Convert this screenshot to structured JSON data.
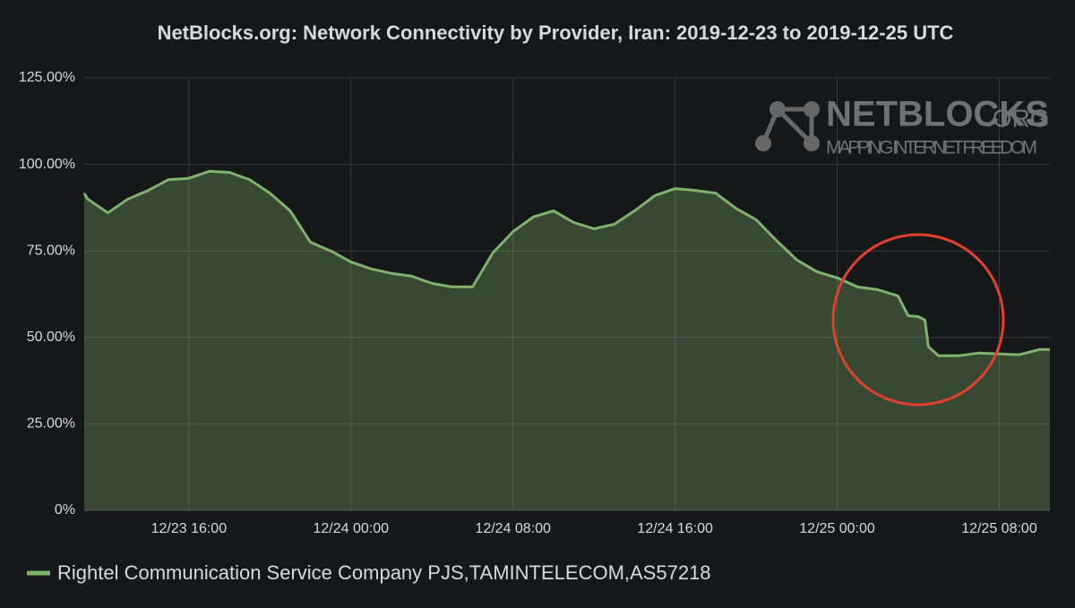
{
  "chart_data": {
    "type": "area",
    "title": "NetBlocks.org: Network Connectivity by Provider, Iran: 2019-12-23 to 2019-12-25 UTC",
    "logo": {
      "name": "NETBLOCKS",
      "suffix": ".ORG",
      "tagline": "MAPPING INTERNET FREEDOM"
    },
    "x": [
      "2019-12-23 10:50",
      "2019-12-23 11:00",
      "2019-12-23 12:00",
      "2019-12-23 13:00",
      "2019-12-23 14:00",
      "2019-12-23 15:00",
      "2019-12-23 16:00",
      "2019-12-23 17:00",
      "2019-12-23 18:00",
      "2019-12-23 19:00",
      "2019-12-23 20:00",
      "2019-12-23 21:00",
      "2019-12-23 22:00",
      "2019-12-23 23:00",
      "2019-12-24 00:00",
      "2019-12-24 01:00",
      "2019-12-24 02:00",
      "2019-12-24 03:00",
      "2019-12-24 04:00",
      "2019-12-24 05:00",
      "2019-12-24 06:00",
      "2019-12-24 07:00",
      "2019-12-24 08:00",
      "2019-12-24 09:00",
      "2019-12-24 10:00",
      "2019-12-24 11:00",
      "2019-12-24 12:00",
      "2019-12-24 13:00",
      "2019-12-24 14:00",
      "2019-12-24 15:00",
      "2019-12-24 16:00",
      "2019-12-24 17:00",
      "2019-12-24 18:00",
      "2019-12-24 19:00",
      "2019-12-24 20:00",
      "2019-12-24 21:00",
      "2019-12-24 22:00",
      "2019-12-24 23:00",
      "2019-12-25 00:00",
      "2019-12-25 01:00",
      "2019-12-25 02:00",
      "2019-12-25 03:00",
      "2019-12-25 03:30",
      "2019-12-25 04:00",
      "2019-12-25 04:20",
      "2019-12-25 04:30",
      "2019-12-25 05:00",
      "2019-12-25 06:00",
      "2019-12-25 07:00",
      "2019-12-25 08:00",
      "2019-12-25 09:00",
      "2019-12-25 10:00",
      "2019-12-25 10:30"
    ],
    "series": [
      {
        "name": "Rightel Communication Service Company PJS,TAMINTELECOM,AS57218",
        "color": "#7eb26d",
        "values": [
          91.7,
          90,
          86,
          90,
          92.5,
          95.6,
          96,
          98,
          97.7,
          95.6,
          91.7,
          86.6,
          77.5,
          75,
          71.8,
          69.8,
          68.5,
          67.7,
          65.6,
          64.6,
          64.6,
          74.4,
          80.6,
          84.8,
          86.6,
          83.2,
          81.4,
          82.7,
          86.6,
          91,
          93,
          92.5,
          91.7,
          87.3,
          84,
          78,
          72.4,
          69,
          67.2,
          64.6,
          63.8,
          62,
          56.3,
          56,
          55,
          47.3,
          44.7,
          44.7,
          45.5,
          45.2,
          45,
          46.5,
          46.5
        ]
      }
    ],
    "xlim": [
      "2019-12-23 10:50",
      "2019-12-25 10:30"
    ],
    "xticks": [
      {
        "value": "2019-12-23 16:00",
        "label": "12/23 16:00"
      },
      {
        "value": "2019-12-24 00:00",
        "label": "12/24 00:00"
      },
      {
        "value": "2019-12-24 08:00",
        "label": "12/24 08:00"
      },
      {
        "value": "2019-12-24 16:00",
        "label": "12/24 16:00"
      },
      {
        "value": "2019-12-25 00:00",
        "label": "12/25 00:00"
      },
      {
        "value": "2019-12-25 08:00",
        "label": "12/25 08:00"
      }
    ],
    "ylim": [
      0,
      125
    ],
    "yticks": [
      {
        "value": 0,
        "label": "0%"
      },
      {
        "value": 25,
        "label": "25.00%"
      },
      {
        "value": 50,
        "label": "50.00%"
      },
      {
        "value": 75,
        "label": "75.00%"
      },
      {
        "value": 100,
        "label": "100.00%"
      },
      {
        "value": 125,
        "label": "125.00%"
      }
    ],
    "grid": true
  }
}
